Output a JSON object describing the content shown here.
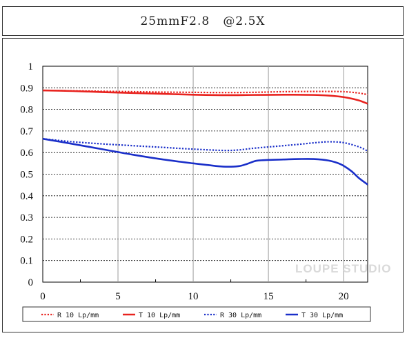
{
  "title": "25mmF2.8   @2.5X",
  "watermark": "LOUPE STUDIO",
  "chart_data": {
    "type": "line",
    "xlim": [
      0,
      21.6
    ],
    "ylim": [
      0,
      1
    ],
    "x_ticks": [
      0,
      5,
      10,
      15,
      20
    ],
    "y_ticks": [
      0,
      0.1,
      0.2,
      0.3,
      0.4,
      0.5,
      0.6,
      0.7,
      0.8,
      0.9,
      1
    ],
    "y_tick_labels": [
      "0",
      "0.1",
      "0.2",
      "0.3",
      "0.4",
      "0.5",
      "0.6",
      "0.7",
      "0.8",
      "0.9",
      "1"
    ],
    "grid": true,
    "legend_position": "bottom",
    "series": [
      {
        "name": "R 10 Lp/mm",
        "color": "#e8231f",
        "dash": "dotted",
        "x": [
          0,
          2,
          4,
          6,
          8,
          10,
          12,
          14,
          16,
          18,
          19,
          20,
          21,
          21.6
        ],
        "y": [
          0.888,
          0.886,
          0.884,
          0.882,
          0.88,
          0.879,
          0.878,
          0.879,
          0.882,
          0.883,
          0.883,
          0.882,
          0.876,
          0.868
        ]
      },
      {
        "name": "T 10 Lp/mm",
        "color": "#e8231f",
        "dash": "solid",
        "x": [
          0,
          2,
          4,
          6,
          8,
          10,
          12,
          14,
          16,
          18,
          19,
          20,
          21,
          21.6
        ],
        "y": [
          0.888,
          0.885,
          0.88,
          0.876,
          0.872,
          0.868,
          0.866,
          0.867,
          0.868,
          0.867,
          0.864,
          0.857,
          0.842,
          0.826
        ]
      },
      {
        "name": "R 30 Lp/mm",
        "color": "#1a2fc9",
        "dash": "dotted",
        "x": [
          0,
          2,
          4,
          6,
          8,
          10,
          12,
          13,
          14,
          15,
          16,
          17,
          18,
          19,
          20,
          21,
          21.6
        ],
        "y": [
          0.664,
          0.65,
          0.64,
          0.632,
          0.624,
          0.616,
          0.61,
          0.612,
          0.62,
          0.626,
          0.632,
          0.638,
          0.645,
          0.65,
          0.646,
          0.627,
          0.607
        ]
      },
      {
        "name": "T 30 Lp/mm",
        "color": "#1a2fc9",
        "dash": "solid",
        "x": [
          0,
          2,
          4,
          6,
          8,
          10,
          11,
          12,
          13,
          13.6,
          14.2,
          15,
          16,
          17,
          18,
          19,
          19.8,
          20.5,
          21,
          21.6
        ],
        "y": [
          0.664,
          0.64,
          0.615,
          0.59,
          0.568,
          0.55,
          0.542,
          0.535,
          0.537,
          0.548,
          0.562,
          0.566,
          0.568,
          0.57,
          0.57,
          0.563,
          0.546,
          0.515,
          0.483,
          0.452
        ]
      }
    ]
  }
}
